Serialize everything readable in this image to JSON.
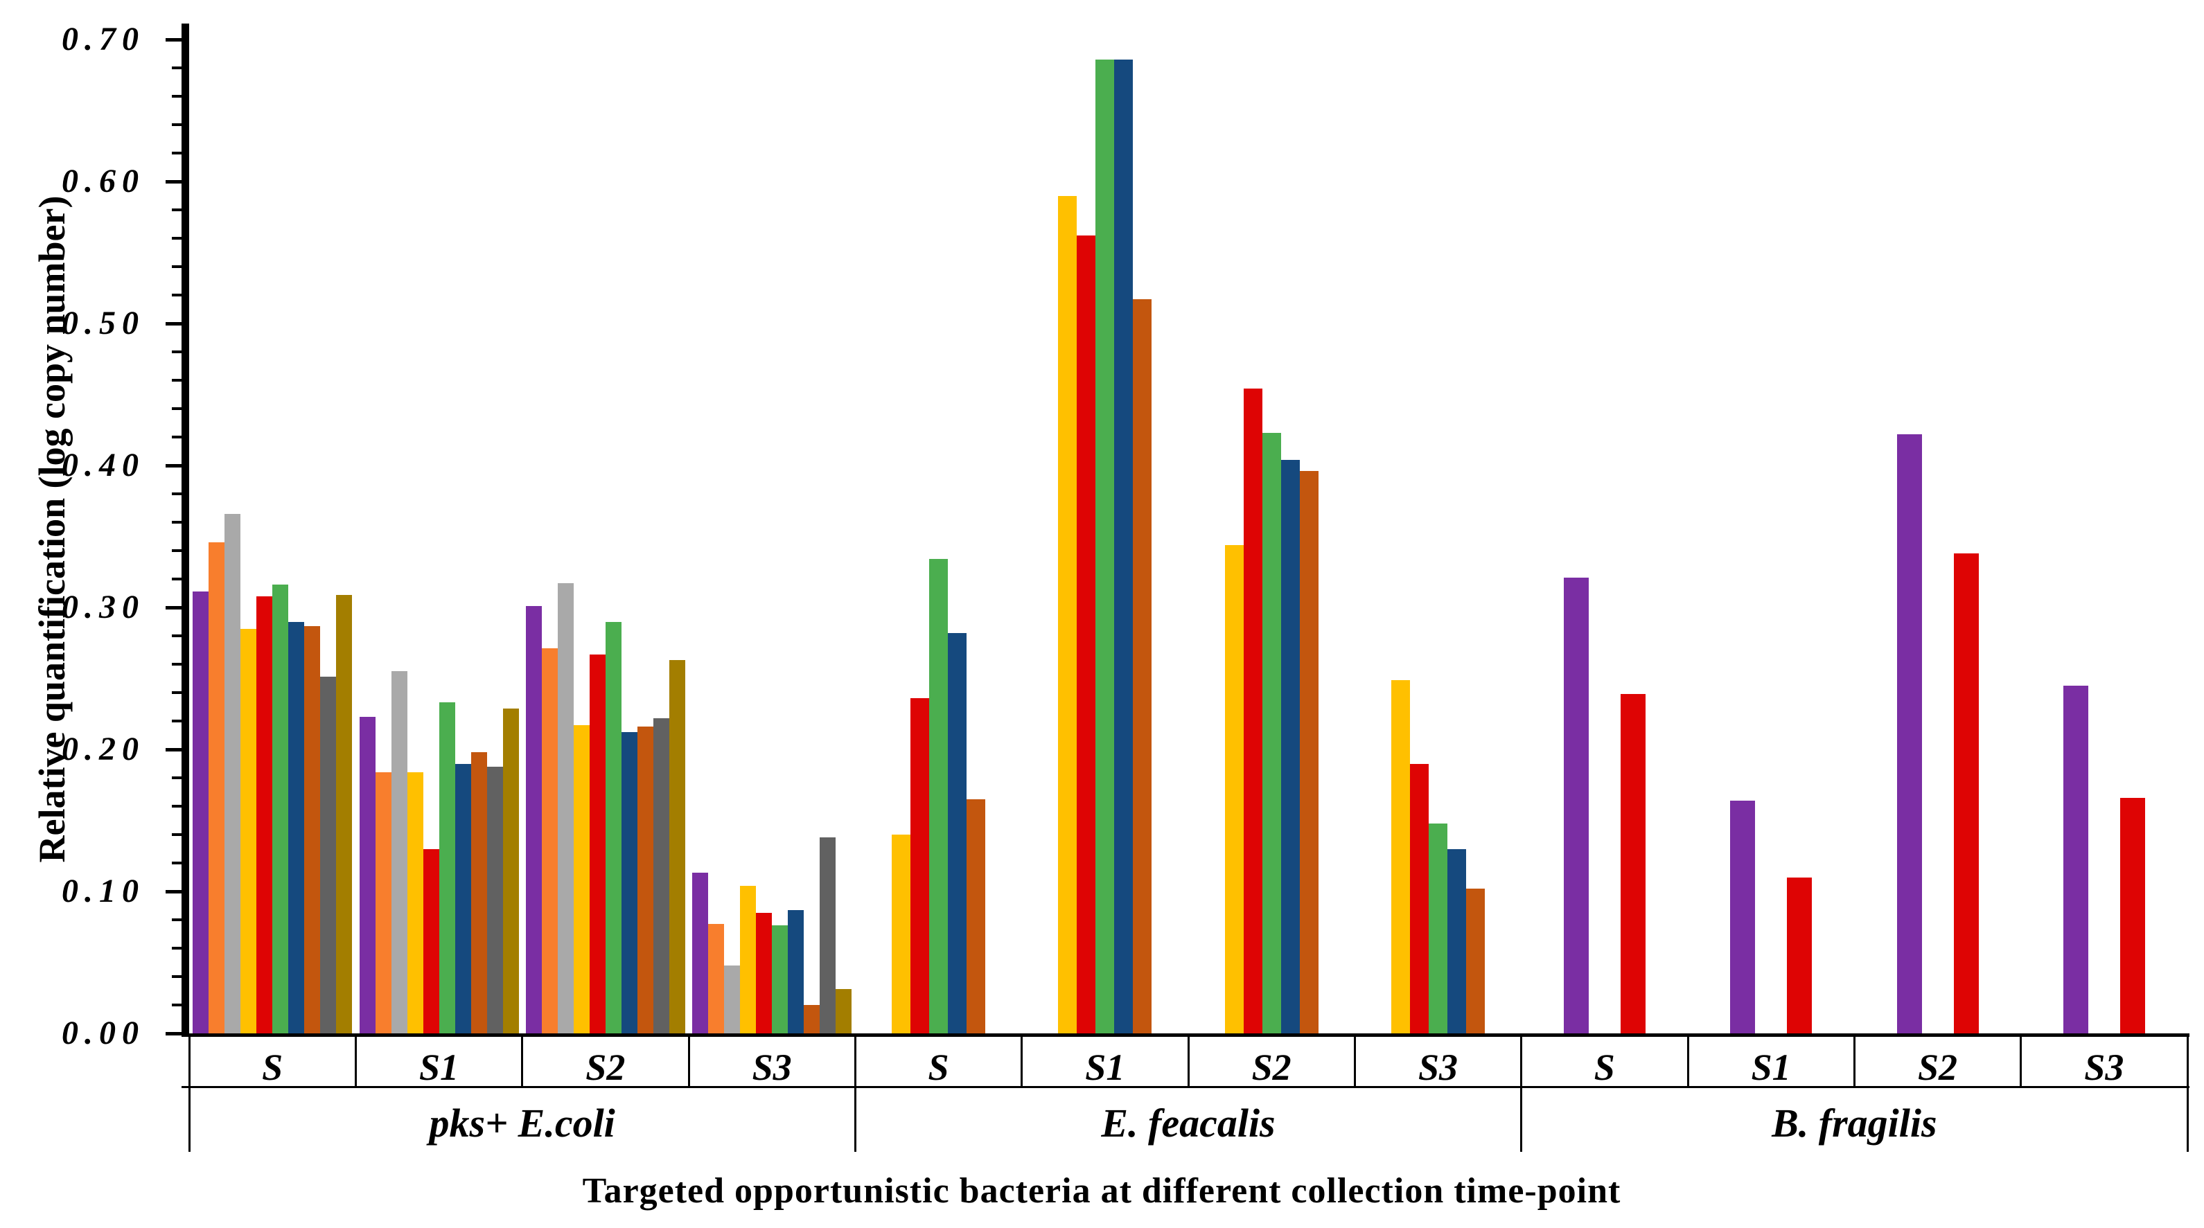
{
  "figure": {
    "y_axis_title": "Relative quantification (log copy number)",
    "x_axis_title": "Targeted opportunistic bacteria at different collection time-point"
  },
  "chart_data": {
    "type": "bar",
    "title": "",
    "xlabel": "Targeted opportunistic bacteria at different collection time-point",
    "ylabel": "Relative quantification (log copy number)",
    "ylim": [
      0,
      0.7
    ],
    "ytick_step_major": 0.1,
    "ytick_step_minor": 0.02,
    "ytick_labels": [
      "0.00",
      "0.10",
      "0.20",
      "0.30",
      "0.40",
      "0.50",
      "0.60",
      "0.70"
    ],
    "grid": "off",
    "legend": "none",
    "palette": {
      "purple": "#7A2EA3",
      "orange": "#F87E2D",
      "silver": "#A9A9A9",
      "gold": "#FFC000",
      "red": "#DE0404",
      "green": "#4BAE4F",
      "navy": "#15497E",
      "rust": "#C3560E",
      "gray": "#616161",
      "dark_gold": "#A37E00"
    },
    "groups": [
      {
        "label": "pks+ E.coli",
        "series_colors": [
          "purple",
          "orange",
          "silver",
          "gold",
          "red",
          "green",
          "navy",
          "rust",
          "gray",
          "dark_gold"
        ],
        "clusters": [
          {
            "label": "S",
            "values": [
              0.311,
              0.346,
              0.366,
              0.285,
              0.308,
              0.316,
              0.29,
              0.287,
              0.251,
              0.309
            ]
          },
          {
            "label": "S1",
            "values": [
              0.223,
              0.184,
              0.255,
              0.184,
              0.13,
              0.233,
              0.19,
              0.198,
              0.188,
              0.229
            ]
          },
          {
            "label": "S2",
            "values": [
              0.301,
              0.271,
              0.317,
              0.217,
              0.267,
              0.29,
              0.212,
              0.216,
              0.222,
              0.263
            ]
          },
          {
            "label": "S3",
            "values": [
              0.113,
              0.077,
              0.048,
              0.104,
              0.085,
              0.076,
              0.087,
              0.02,
              0.138,
              0.031
            ]
          }
        ]
      },
      {
        "label": "E. feacalis",
        "series_colors": [
          "gold",
          "red",
          "green",
          "navy",
          "rust"
        ],
        "clusters": [
          {
            "label": "S",
            "values": [
              0.14,
              0.236,
              0.334,
              0.282,
              0.165
            ]
          },
          {
            "label": "S1",
            "values": [
              0.59,
              0.562,
              0.686,
              0.686,
              0.517
            ]
          },
          {
            "label": "S2",
            "values": [
              0.344,
              0.454,
              0.423,
              0.404,
              0.396
            ]
          },
          {
            "label": "S3",
            "values": [
              0.249,
              0.19,
              0.148,
              0.13,
              0.102
            ]
          }
        ]
      },
      {
        "label": "B. fragilis",
        "series_colors": [
          "purple",
          "red"
        ],
        "clusters": [
          {
            "label": "S",
            "values": [
              0.321,
              0.239
            ]
          },
          {
            "label": "S1",
            "values": [
              0.164,
              0.11
            ]
          },
          {
            "label": "S2",
            "values": [
              0.422,
              0.338
            ]
          },
          {
            "label": "S3",
            "values": [
              0.245,
              0.166
            ]
          }
        ]
      }
    ]
  }
}
